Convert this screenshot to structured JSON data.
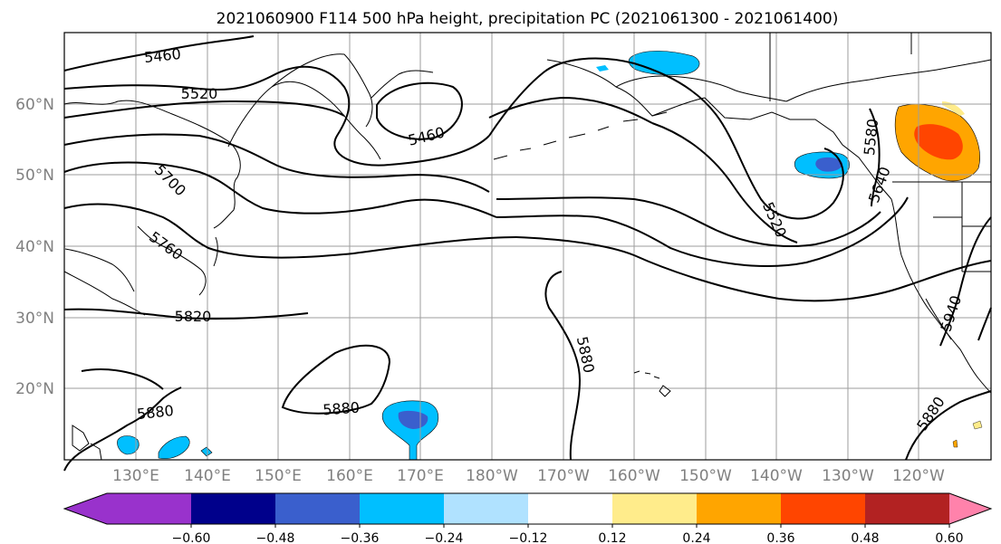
{
  "title": "2021060900 F114 500 hPa height, precipitation PC (2021061300 - 2021061400)",
  "lat_labels": [
    "60°N",
    "50°N",
    "40°N",
    "30°N",
    "20°N"
  ],
  "lon_labels": [
    "130°E",
    "140°E",
    "150°E",
    "160°E",
    "170°E",
    "180°W",
    "170°W",
    "160°W",
    "150°W",
    "140°W",
    "130°W",
    "120°W"
  ],
  "contour_labels": [
    "5460",
    "5520",
    "5460",
    "5700",
    "5760",
    "5820",
    "5880",
    "5880",
    "5880",
    "5520",
    "5580",
    "5640",
    "5880",
    "5940"
  ],
  "colorbar": {
    "ticks": [
      "−0.60",
      "−0.48",
      "−0.36",
      "−0.24",
      "−0.12",
      "0.12",
      "0.24",
      "0.36",
      "0.48",
      "0.60"
    ],
    "colors": [
      "#9932cc",
      "#00008b",
      "#3a5fcd",
      "#00bfff",
      "#b0e2ff",
      "#ffffff",
      "#ffec8b",
      "#ffa500",
      "#ff4500",
      "#b22222",
      "#ff82ab",
      "#ff82ab"
    ]
  }
}
